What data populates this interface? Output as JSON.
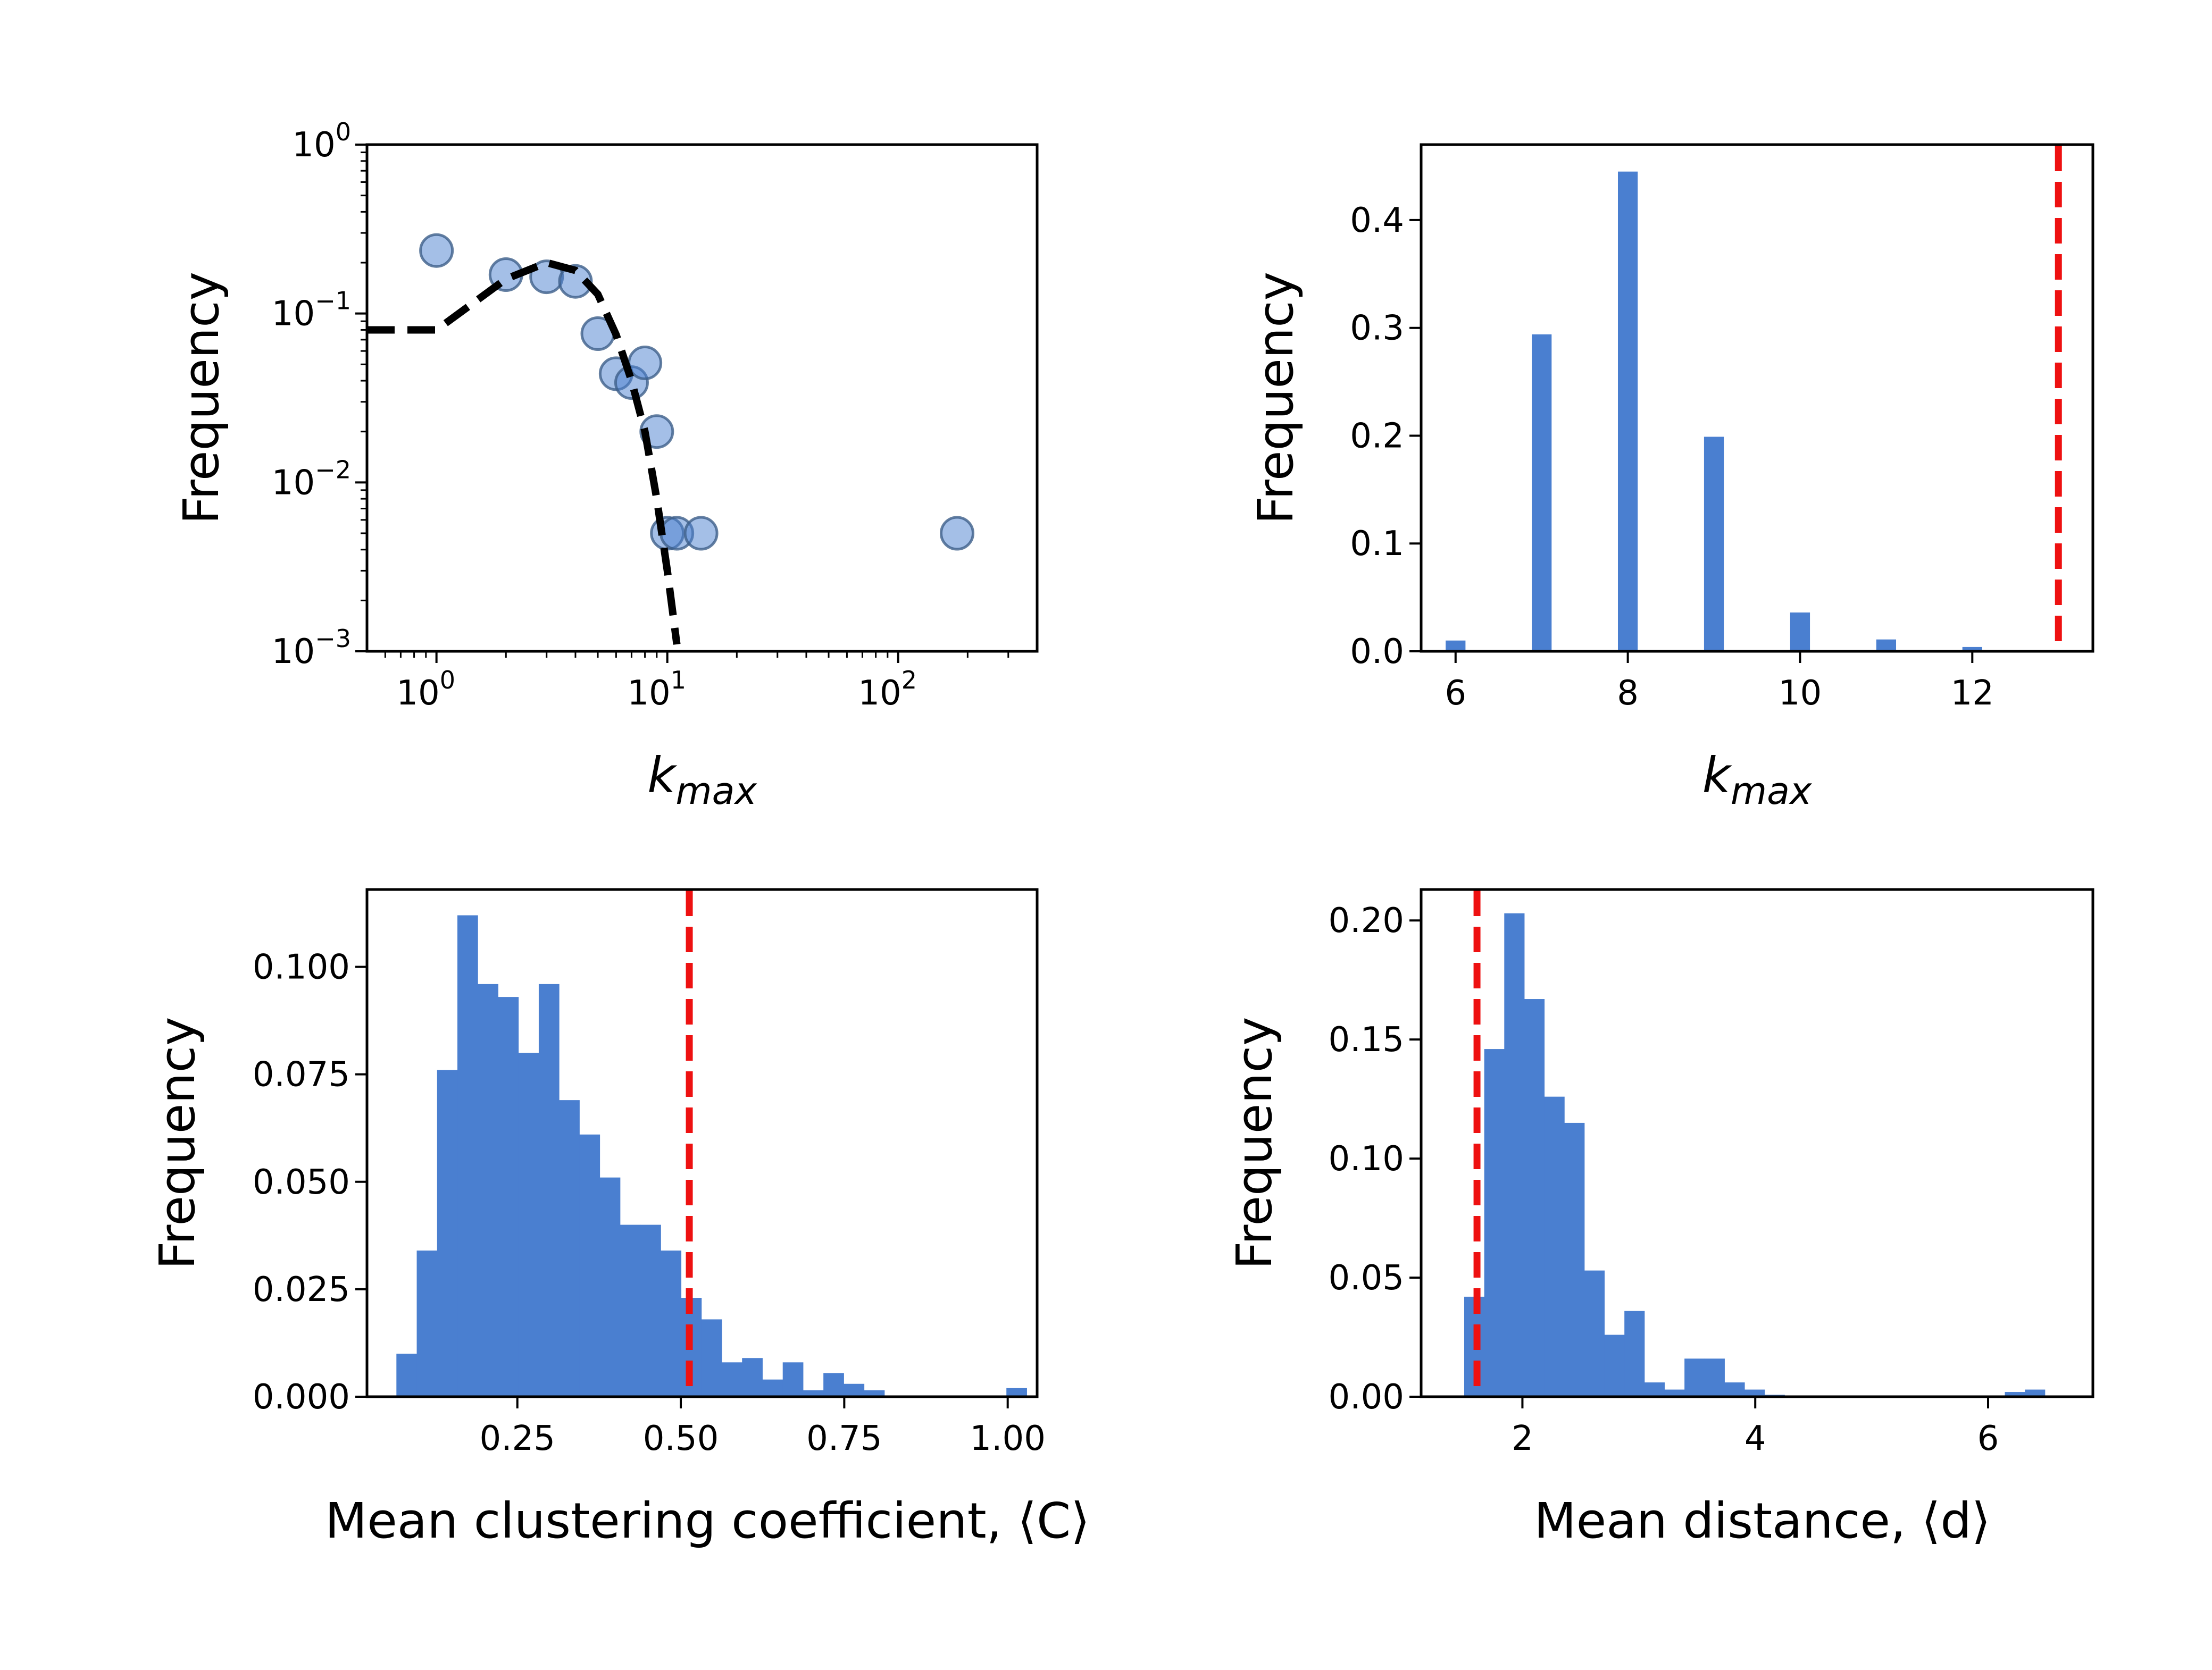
{
  "chart_data": [
    {
      "type": "scatter",
      "panel": "top-left",
      "xscale": "log",
      "yscale": "log",
      "xlim": [
        0.5,
        400
      ],
      "ylim": [
        0.001,
        1
      ],
      "xticks": [
        {
          "value": 1,
          "base": "10",
          "exp": "0"
        },
        {
          "value": 10,
          "base": "10",
          "exp": "1"
        },
        {
          "value": 100,
          "base": "10",
          "exp": "2"
        }
      ],
      "yticks": [
        {
          "value": 1,
          "base": "10",
          "exp": "0"
        },
        {
          "value": 0.1,
          "base": "10",
          "exp": "−1"
        },
        {
          "value": 0.01,
          "base": "10",
          "exp": "−2"
        },
        {
          "value": 0.001,
          "base": "10",
          "exp": "−3"
        }
      ],
      "xlabel": {
        "base": "k",
        "sub": "max"
      },
      "ylabel": "Frequency",
      "points": [
        {
          "x": 1,
          "y": 0.236
        },
        {
          "x": 2,
          "y": 0.17
        },
        {
          "x": 3,
          "y": 0.165
        },
        {
          "x": 4,
          "y": 0.155
        },
        {
          "x": 5,
          "y": 0.076
        },
        {
          "x": 6,
          "y": 0.044
        },
        {
          "x": 7,
          "y": 0.039
        },
        {
          "x": 8,
          "y": 0.051
        },
        {
          "x": 9,
          "y": 0.02
        },
        {
          "x": 10,
          "y": 0.005
        },
        {
          "x": 11,
          "y": 0.005
        },
        {
          "x": 14,
          "y": 0.005
        },
        {
          "x": 180,
          "y": 0.005
        }
      ],
      "fit_line": [
        {
          "x": 0.5,
          "y": 0.08
        },
        {
          "x": 1,
          "y": 0.08
        },
        {
          "x": 2,
          "y": 0.16
        },
        {
          "x": 3,
          "y": 0.2
        },
        {
          "x": 4,
          "y": 0.18
        },
        {
          "x": 5,
          "y": 0.13
        },
        {
          "x": 6,
          "y": 0.075
        },
        {
          "x": 7,
          "y": 0.04
        },
        {
          "x": 8,
          "y": 0.02
        },
        {
          "x": 9,
          "y": 0.008
        },
        {
          "x": 10,
          "y": 0.003
        },
        {
          "x": 11,
          "y": 0.0011
        }
      ],
      "colors": {
        "marker_fill": "#4a7fd0",
        "marker_edge": "#3d5f8a",
        "fit_line": "#000000"
      }
    },
    {
      "type": "bar",
      "panel": "top-right",
      "xlim": [
        5.6,
        13.4
      ],
      "ylim": [
        0,
        0.47
      ],
      "xticks": [
        6,
        8,
        10,
        12
      ],
      "xtick_labels": [
        "6",
        "8",
        "10",
        "12"
      ],
      "yticks": [
        0,
        0.1,
        0.2,
        0.3,
        0.4
      ],
      "ytick_labels": [
        "0.0",
        "0.1",
        "0.2",
        "0.3",
        "0.4"
      ],
      "xlabel": {
        "base": "k",
        "sub": "max"
      },
      "ylabel": "Frequency",
      "bar_width": 0.23,
      "bars": [
        {
          "x": 6,
          "value": 0.01
        },
        {
          "x": 7,
          "value": 0.294
        },
        {
          "x": 8,
          "value": 0.445
        },
        {
          "x": 9,
          "value": 0.199
        },
        {
          "x": 10,
          "value": 0.036
        },
        {
          "x": 11,
          "value": 0.011
        },
        {
          "x": 12,
          "value": 0.004
        }
      ],
      "reference_line": 13,
      "colors": {
        "bar": "#4a7fd0",
        "reference": "#ee1111"
      }
    },
    {
      "type": "bar",
      "panel": "bottom-left",
      "xlim": [
        0.02,
        1.045
      ],
      "ylim": [
        0,
        0.118
      ],
      "xticks": [
        0.25,
        0.5,
        0.75,
        1.0
      ],
      "xtick_labels": [
        "0.25",
        "0.50",
        "0.75",
        "1.00"
      ],
      "yticks": [
        0,
        0.025,
        0.05,
        0.075,
        0.1
      ],
      "ytick_labels": [
        "0.000",
        "0.025",
        "0.050",
        "0.075",
        "0.100"
      ],
      "xlabel": "Mean clustering coefficient, ⟨C⟩",
      "ylabel": "Frequency",
      "bin_start": 0.065,
      "bin_width": 0.0311,
      "values": [
        0.01,
        0.034,
        0.076,
        0.112,
        0.096,
        0.093,
        0.08,
        0.096,
        0.069,
        0.061,
        0.051,
        0.04,
        0.04,
        0.034,
        0.023,
        0.018,
        0.008,
        0.009,
        0.004,
        0.008,
        0.0015,
        0.0055,
        0.003,
        0.0015,
        0,
        0,
        0,
        0,
        0,
        0,
        0.002
      ],
      "reference_line": 0.513,
      "colors": {
        "bar": "#4a7fd0",
        "reference": "#ee1111"
      }
    },
    {
      "type": "bar",
      "panel": "bottom-right",
      "xlim": [
        1.13,
        6.9
      ],
      "ylim": [
        0,
        0.213
      ],
      "xticks": [
        2,
        4,
        6
      ],
      "xtick_labels": [
        "2",
        "4",
        "6"
      ],
      "yticks": [
        0,
        0.05,
        0.1,
        0.15,
        0.2
      ],
      "ytick_labels": [
        "0.00",
        "0.05",
        "0.10",
        "0.15",
        "0.20"
      ],
      "xlabel": "Mean distance, ⟨d⟩",
      "ylabel": "Frequency",
      "bin_start": 1.5,
      "bin_width": 0.172,
      "values": [
        0.042,
        0.146,
        0.203,
        0.167,
        0.126,
        0.115,
        0.053,
        0.026,
        0.036,
        0.006,
        0.003,
        0.016,
        0.016,
        0.006,
        0.003,
        0.0008,
        0,
        0,
        0,
        0,
        0,
        0,
        0,
        0,
        0,
        0,
        0,
        0.002,
        0.003
      ],
      "reference_line": 1.61,
      "colors": {
        "bar": "#4a7fd0",
        "reference": "#ee1111"
      }
    }
  ]
}
